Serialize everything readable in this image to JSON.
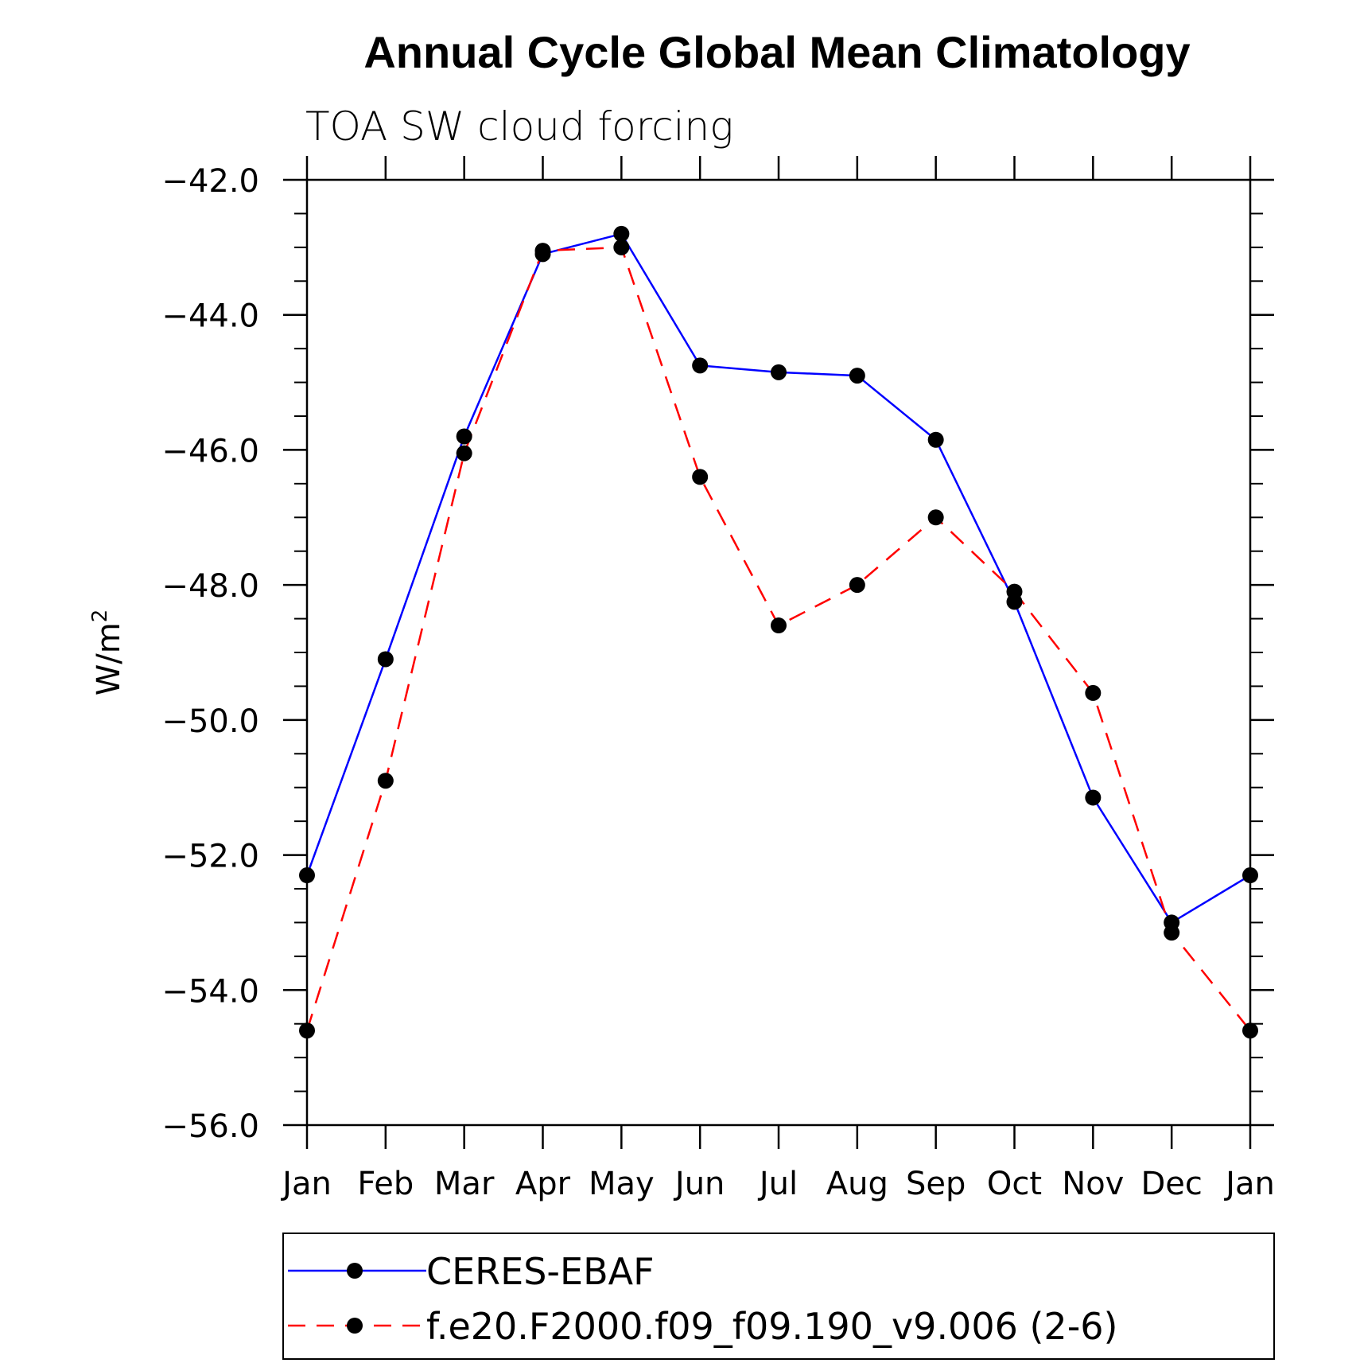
{
  "chart_data": {
    "type": "line",
    "title": "Annual Cycle Global Mean Climatology",
    "subtitle": "TOA SW cloud forcing",
    "xlabel": "",
    "ylabel": "W/m",
    "ylabel_superscript": "2",
    "categories": [
      "Jan",
      "Feb",
      "Mar",
      "Apr",
      "May",
      "Jun",
      "Jul",
      "Aug",
      "Sep",
      "Oct",
      "Nov",
      "Dec",
      "Jan"
    ],
    "ylim": [
      -56.0,
      -42.0
    ],
    "yticks": [
      "-42.0",
      "-44.0",
      "-46.0",
      "-48.0",
      "-50.0",
      "-52.0",
      "-54.0",
      "-56.0"
    ],
    "series": [
      {
        "name": "CERES-EBAF",
        "color": "#0000ff",
        "dash": "solid",
        "values": [
          -52.3,
          -49.1,
          -45.8,
          -43.1,
          -42.8,
          -44.75,
          -44.85,
          -44.9,
          -45.85,
          -48.25,
          -51.15,
          -53.0,
          -52.3
        ]
      },
      {
        "name": "f.e20.F2000.f09_f09.190_v9.006 (2-6)",
        "color": "#ff0000",
        "dash": "dashed",
        "values": [
          -54.6,
          -50.9,
          -46.05,
          -43.05,
          -43.0,
          -46.4,
          -48.6,
          -48.0,
          -47.0,
          -48.1,
          -49.6,
          -53.15,
          -54.6
        ]
      }
    ],
    "legend_position": "bottom"
  }
}
